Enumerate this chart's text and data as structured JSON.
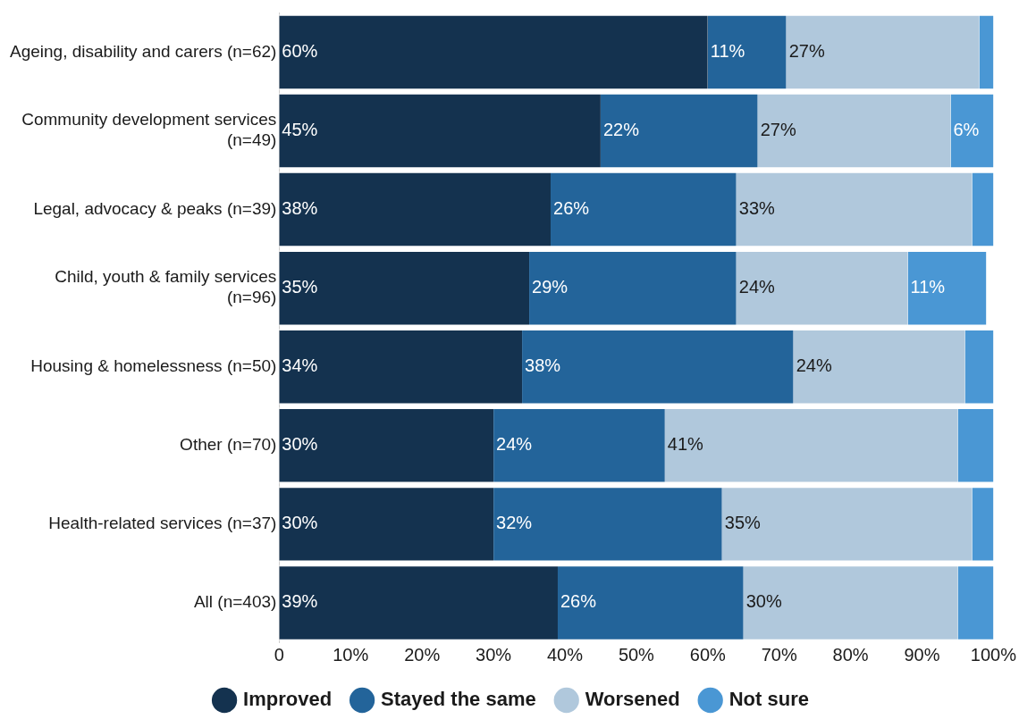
{
  "chart_data": {
    "type": "bar",
    "orientation": "horizontal",
    "stacked": true,
    "categories": [
      "Ageing, disability and carers (n=62)",
      "Community development services (n=49)",
      "Legal, advocacy & peaks (n=39)",
      "Child, youth & family services (n=96)",
      "Housing & homelessness (n=50)",
      "Other (n=70)",
      "Health-related services (n=37)",
      "All (n=403)"
    ],
    "series": [
      {
        "name": "Improved",
        "color": "#14324f",
        "values": [
          60,
          45,
          38,
          35,
          34,
          30,
          30,
          39
        ],
        "value_labels": [
          "60%",
          "45%",
          "38%",
          "35%",
          "34%",
          "30%",
          "30%",
          "39%"
        ]
      },
      {
        "name": "Stayed the same",
        "color": "#23649a",
        "values": [
          11,
          22,
          26,
          29,
          38,
          24,
          32,
          26
        ],
        "value_labels": [
          "11%",
          "22%",
          "26%",
          "29%",
          "38%",
          "24%",
          "32%",
          "26%"
        ]
      },
      {
        "name": "Worsened",
        "color": "#b0c8dc",
        "values": [
          27,
          27,
          33,
          24,
          24,
          41,
          35,
          30
        ],
        "value_labels": [
          "27%",
          "27%",
          "33%",
          "24%",
          "24%",
          "41%",
          "35%",
          "30%"
        ]
      },
      {
        "name": "Not sure",
        "color": "#4a97d4",
        "values": [
          2,
          6,
          3,
          11,
          4,
          5,
          3,
          5
        ],
        "value_labels": [
          null,
          "6%",
          null,
          "11%",
          null,
          null,
          null,
          null
        ]
      }
    ],
    "xlim": [
      0,
      100
    ],
    "xticks": [
      {
        "value": 0,
        "label": "0"
      },
      {
        "value": 10,
        "label": "10%"
      },
      {
        "value": 20,
        "label": "20%"
      },
      {
        "value": 30,
        "label": "30%"
      },
      {
        "value": 40,
        "label": "40%"
      },
      {
        "value": 50,
        "label": "50%"
      },
      {
        "value": 60,
        "label": "60%"
      },
      {
        "value": 70,
        "label": "70%"
      },
      {
        "value": 80,
        "label": "80%"
      },
      {
        "value": 90,
        "label": "90%"
      },
      {
        "value": 100,
        "label": "100%"
      }
    ],
    "grid": false,
    "legend": "bottom",
    "marker": "circle"
  }
}
